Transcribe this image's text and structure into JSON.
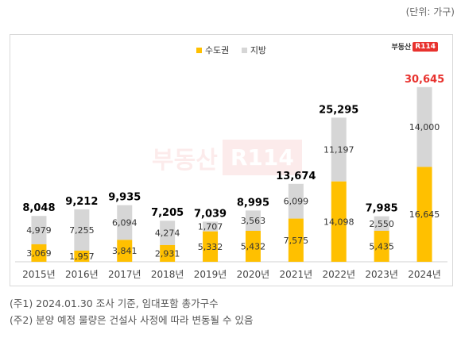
{
  "unit_label": "(단위: 가구)",
  "brand": {
    "text": "부동산",
    "badge": "R114"
  },
  "notes": [
    "(주1) 2024.01.30 조사 기준, 임대포함 총가구수",
    "(주2) 분양 예정 물량은 건설사 사정에 따라 변동될 수 있음"
  ],
  "colors": {
    "capital": "#FFC000",
    "regional": "#D6D6D6",
    "highlight_total": "#E8322E"
  },
  "chart_data": {
    "type": "bar",
    "stacked": true,
    "categories": [
      "2015년",
      "2016년",
      "2017년",
      "2018년",
      "2019년",
      "2020년",
      "2021년",
      "2022년",
      "2023년",
      "2024년"
    ],
    "series": [
      {
        "name": "수도권",
        "values": [
          3069,
          1957,
          3841,
          2931,
          5332,
          5432,
          7575,
          14098,
          5435,
          16645
        ]
      },
      {
        "name": "지방",
        "values": [
          4979,
          7255,
          6094,
          4274,
          1707,
          3563,
          6099,
          11197,
          2550,
          14000
        ]
      }
    ],
    "totals": [
      "8,048",
      "9,212",
      "9,935",
      "7,205",
      "7,039",
      "8,995",
      "13,674",
      "25,295",
      "7,985",
      "30,645"
    ],
    "segment_labels": {
      "수도권": [
        "3,069",
        "1,957",
        "3,841",
        "2,931",
        "5,332",
        "5,432",
        "7,575",
        "14,098",
        "5,435",
        "16,645"
      ],
      "지방": [
        "4,979",
        "7,255",
        "6,094",
        "4,274",
        "1,707",
        "3,563",
        "6,099",
        "11,197",
        "2,550",
        "14,000"
      ]
    },
    "highlight_index": 9,
    "legend_position": "top-center",
    "grid": false,
    "ylim": [
      0,
      32000
    ]
  }
}
